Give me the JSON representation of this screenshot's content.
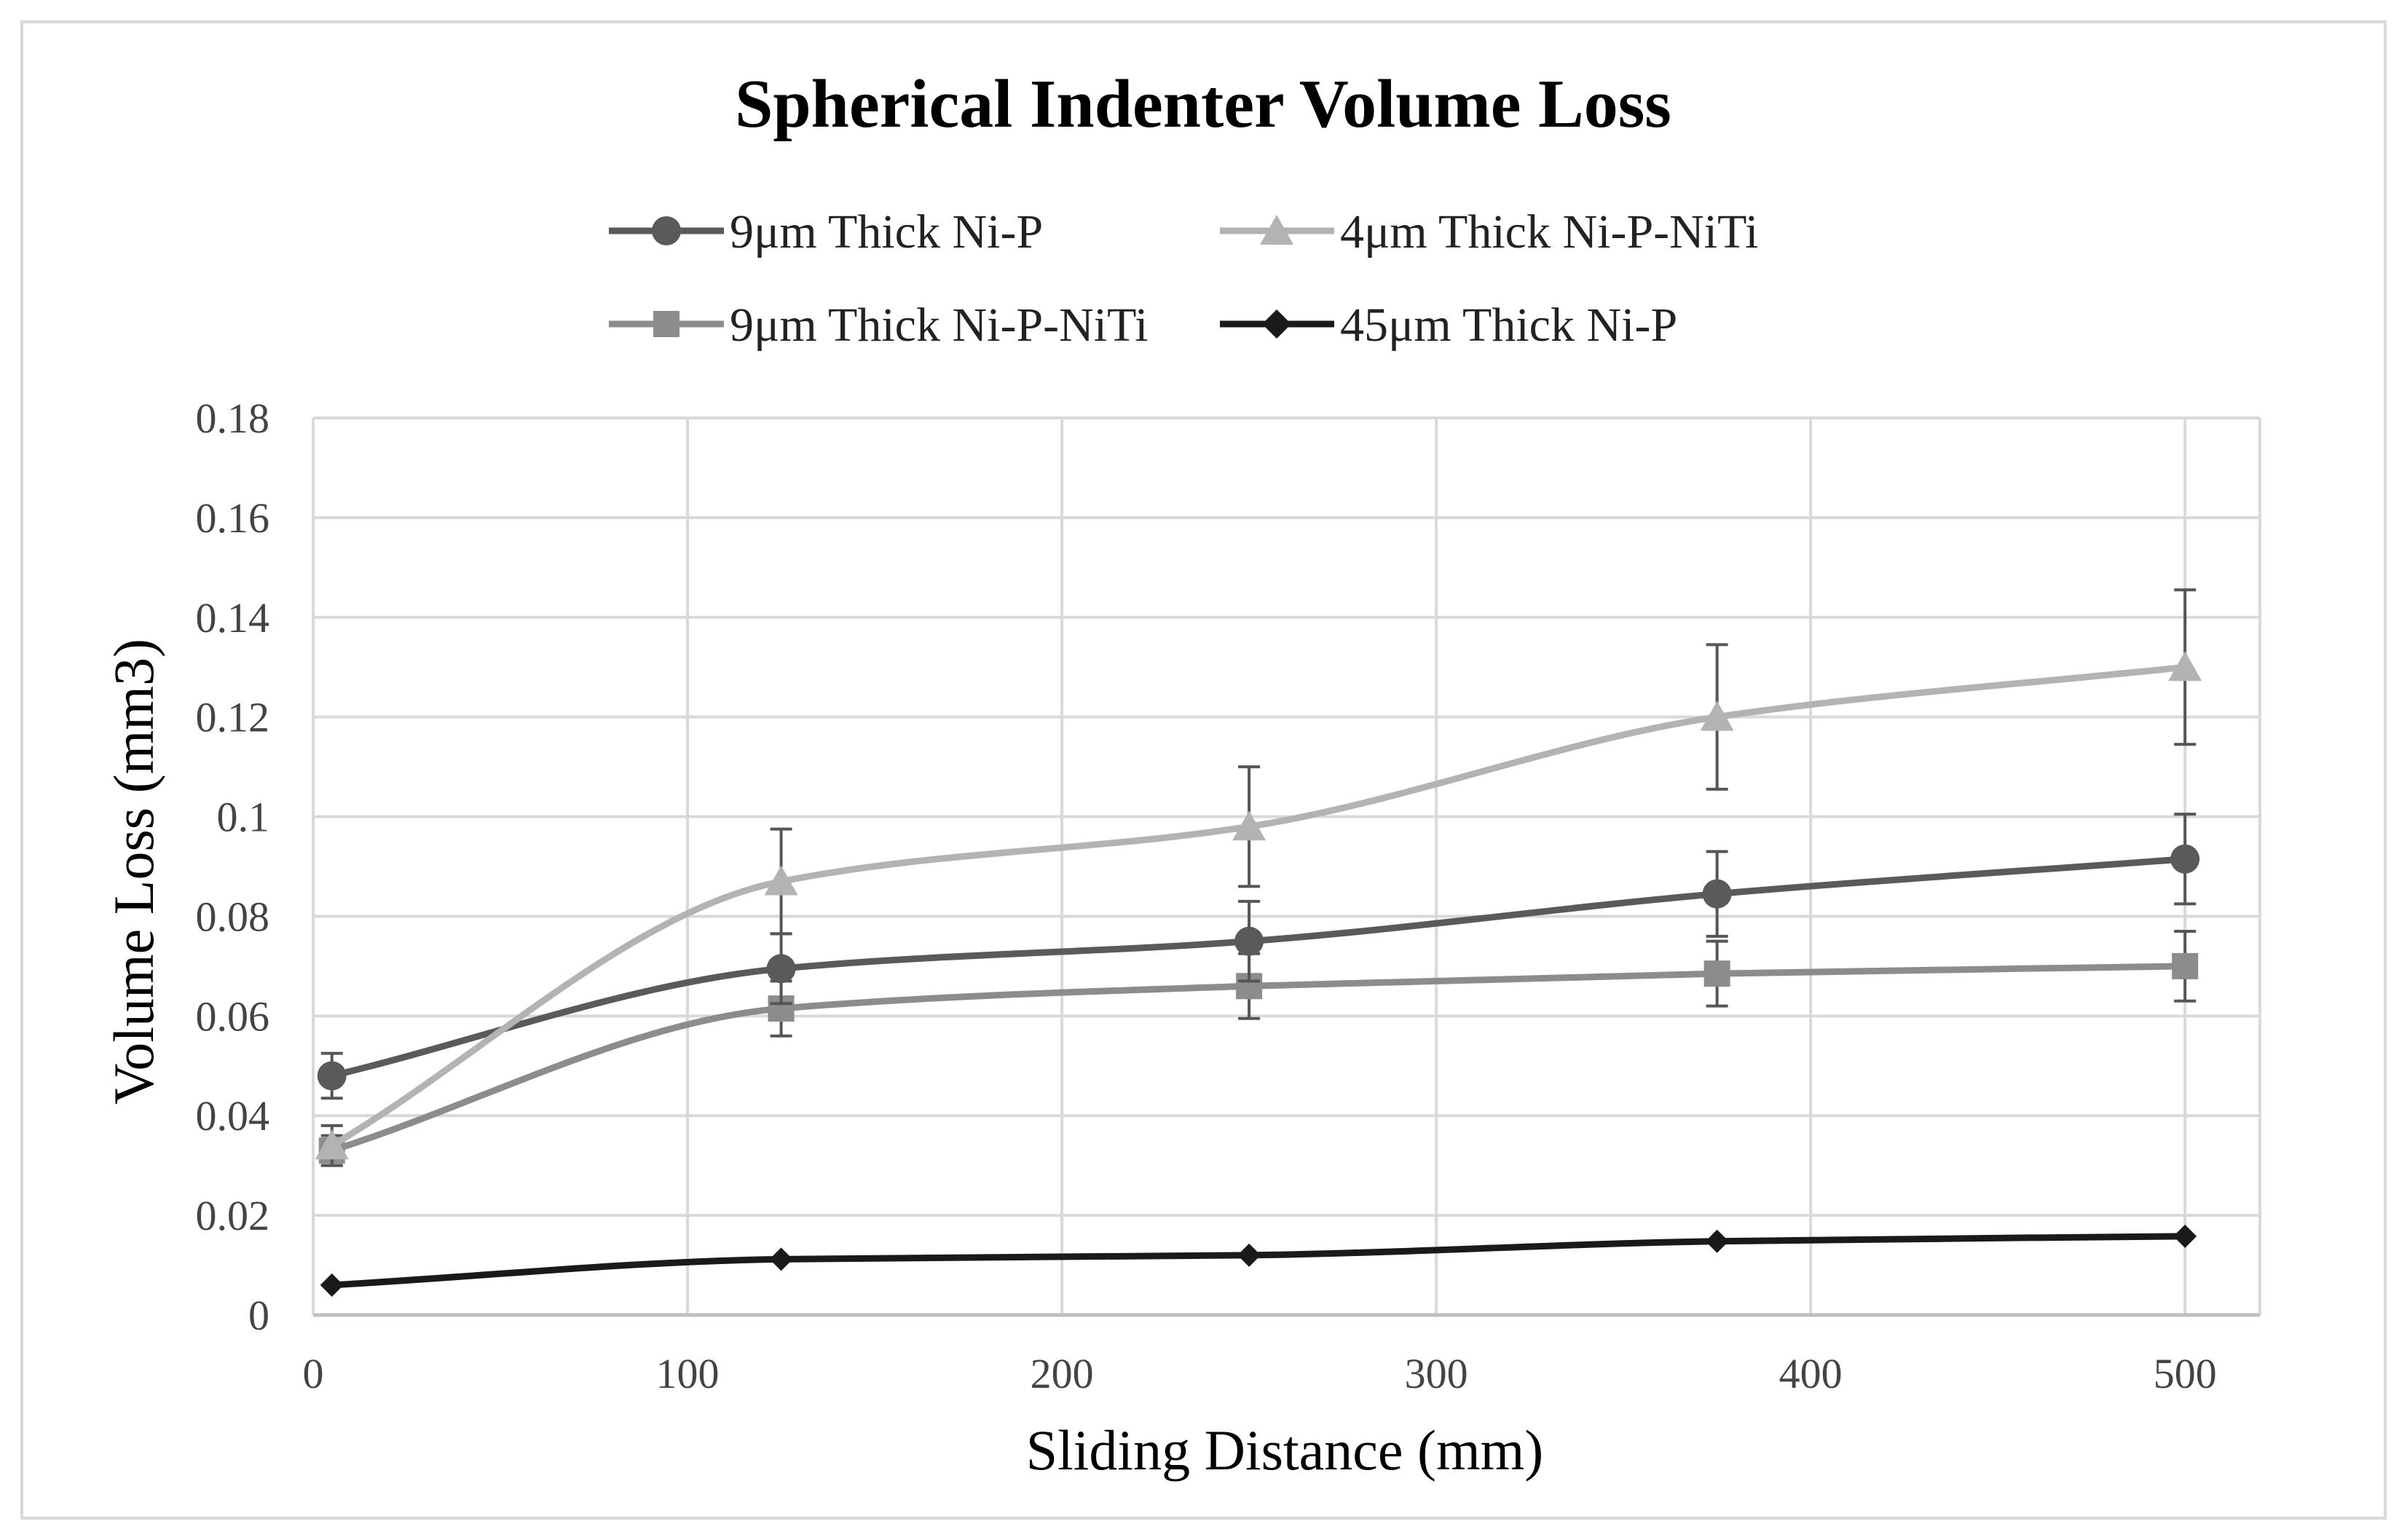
{
  "chart_data": {
    "type": "line",
    "title": "Spherical Indenter Volume Loss",
    "xlabel": "Sliding Distance (mm)",
    "ylabel": "Volume Loss (mm3)",
    "xlim": [
      0,
      520
    ],
    "ylim": [
      0,
      0.18
    ],
    "x_ticks": [
      0,
      100,
      200,
      300,
      400,
      500
    ],
    "y_ticks": [
      0,
      0.02,
      0.04,
      0.06,
      0.08,
      0.1,
      0.12,
      0.14,
      0.16,
      0.18
    ],
    "x_tick_labels": [
      "0",
      "100",
      "200",
      "300",
      "400",
      "500"
    ],
    "y_tick_labels": [
      "0",
      "0.02",
      "0.04",
      "0.06",
      "0.08",
      "0.1",
      "0.12",
      "0.14",
      "0.16",
      "0.18"
    ],
    "grid": true,
    "legend_position": "top",
    "smooth": true,
    "series": [
      {
        "name": "9μm Thick Ni-P",
        "marker": "circle",
        "color": "#5a5a5a",
        "x": [
          5,
          125,
          250,
          375,
          500
        ],
        "y": [
          0.048,
          0.0695,
          0.075,
          0.0845,
          0.0915
        ],
        "err": [
          0.0045,
          0.007,
          0.008,
          0.0085,
          0.009
        ]
      },
      {
        "name": "4μm Thick Ni-P-NiTi",
        "marker": "triangle",
        "color": "#b3b3b3",
        "x": [
          5,
          125,
          250,
          375,
          500
        ],
        "y": [
          0.034,
          0.087,
          0.098,
          0.12,
          0.13
        ],
        "err": [
          0.004,
          0.0105,
          0.012,
          0.0145,
          0.0155
        ]
      },
      {
        "name": "9μm Thick Ni-P-NiTi",
        "marker": "square",
        "color": "#8c8c8c",
        "x": [
          5,
          125,
          250,
          375,
          500
        ],
        "y": [
          0.033,
          0.0615,
          0.066,
          0.0685,
          0.07
        ],
        "err": [
          0.003,
          0.0055,
          0.0065,
          0.0065,
          0.007
        ]
      },
      {
        "name": "45μm Thick Ni-P",
        "marker": "diamond",
        "color": "#1a1a1a",
        "x": [
          5,
          125,
          250,
          375,
          500
        ],
        "y": [
          0.006,
          0.0112,
          0.012,
          0.0148,
          0.0158
        ],
        "err": [
          0,
          0,
          0,
          0,
          0
        ]
      }
    ]
  }
}
